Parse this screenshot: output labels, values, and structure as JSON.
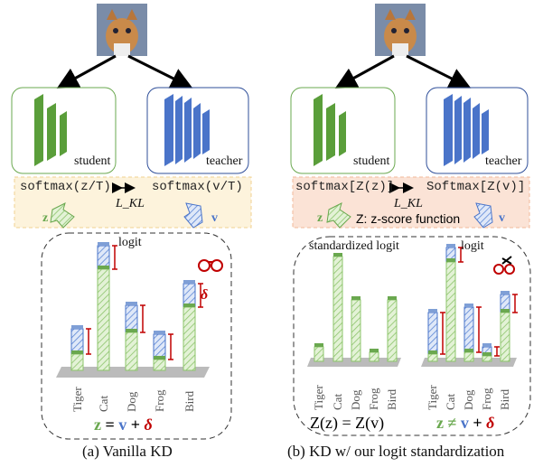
{
  "left": {
    "student_label": "student",
    "teacher_label": "teacher",
    "formula_left": "softmax(z/T)",
    "formula_right": "softmax(v/T)",
    "loss": "L_KL",
    "z_label": "z",
    "v_label": "v",
    "chart_title": "logit",
    "categories": [
      "Tiger",
      "Cat",
      "Dog",
      "Frog",
      "Bird"
    ],
    "equation": {
      "lhs": "z",
      "eq": "=",
      "v": "v",
      "plus": "+",
      "delta": "δ"
    },
    "delta_mark": "δ",
    "caption": "(a) Vanilla KD"
  },
  "right": {
    "student_label": "student",
    "teacher_label": "teacher",
    "formula_left": "softmax[Z(z)]",
    "formula_right": "Softmax[Z(v)]",
    "loss": "L_KL",
    "z_label": "z",
    "v_label": "v",
    "zscore_text": "Z: z-score function",
    "chart_title_left": "standardized logit",
    "chart_title_right": "logit",
    "categories": [
      "Tiger",
      "Cat",
      "Dog",
      "Frog",
      "Bird"
    ],
    "equation_left": "Z(z) = Z(v)",
    "equation_right": {
      "lhs": "z",
      "neq": "≠",
      "v": "v",
      "plus": "+",
      "delta": "δ"
    },
    "caption": "(b) KD w/ our logit standardization"
  },
  "colors": {
    "student": "#6aa84f",
    "teacher": "#4a74c9",
    "delta": "#c00000",
    "loss_box_a": "#fdf3dc",
    "loss_box_b": "#fbe3d6"
  }
}
